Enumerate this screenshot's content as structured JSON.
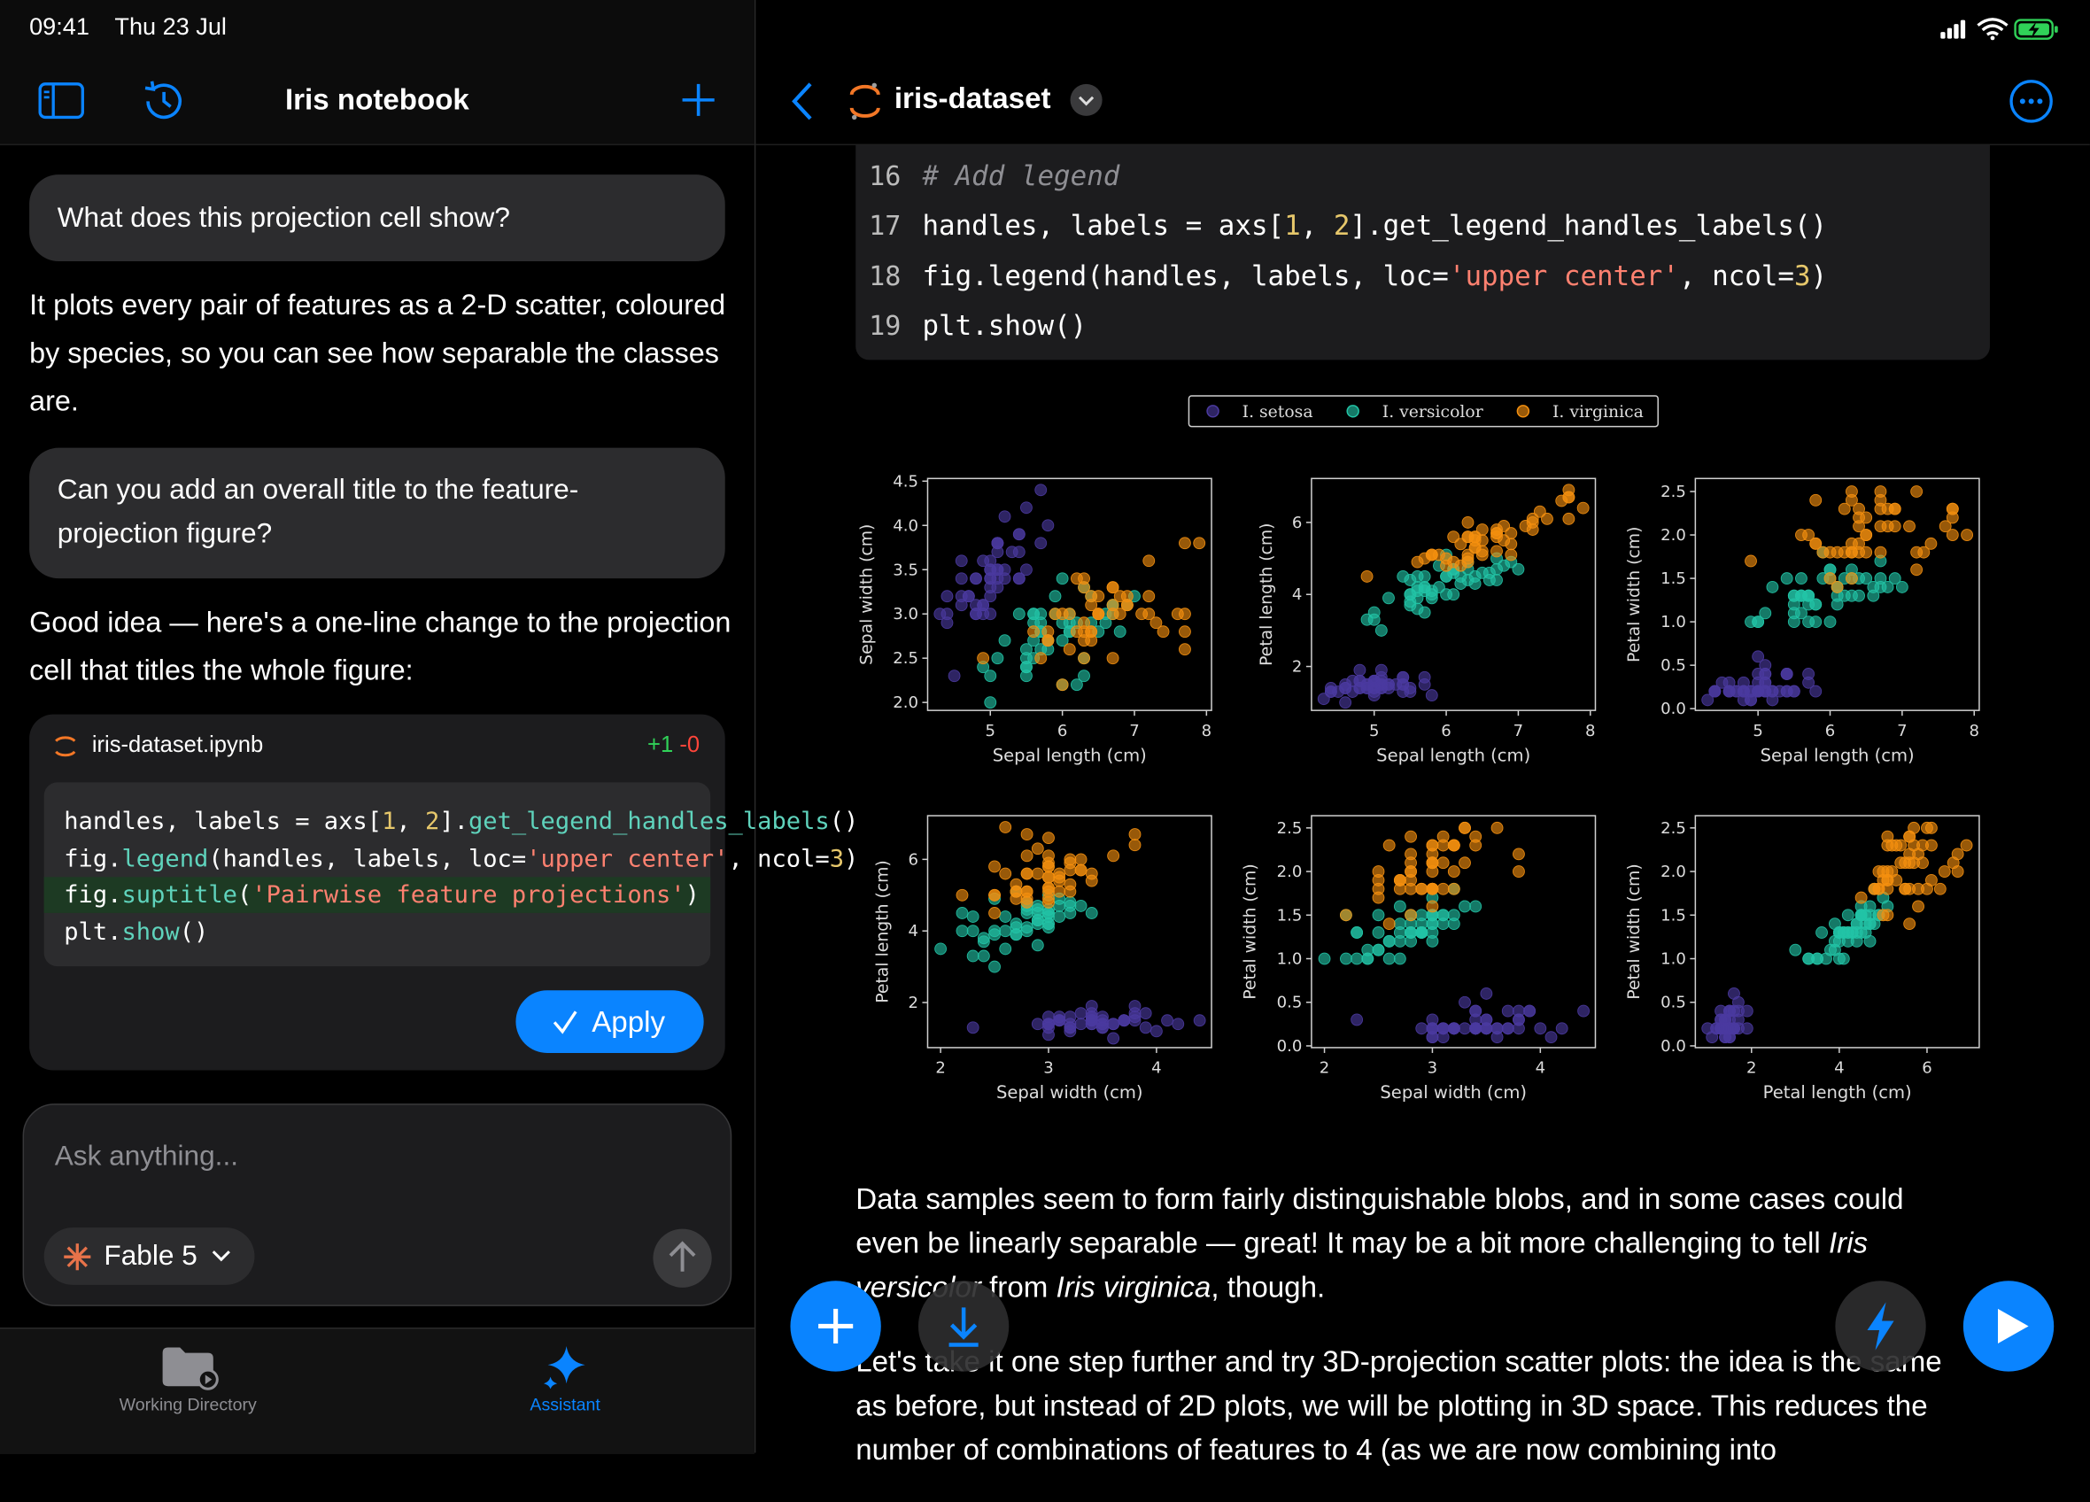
{
  "status_bar": {
    "time": "09:41",
    "date": "Thu 23 Jul"
  },
  "assistant": {
    "title": "Iris notebook",
    "messages": [
      {
        "user": "What does this projection cell show?"
      },
      {
        "reply": "It plots every pair of features as a 2-D scatter, coloured by species, so you can see how separable the classes are."
      },
      {
        "user": "Can you add an overall title to the feature-projection figure?"
      },
      {
        "reply": "Good idea — here's a one-line change to the projection cell that titles the whole figure:"
      }
    ],
    "suggestion": {
      "file": "iris-dataset.ipynb",
      "additions": "+1",
      "deletions": "-0",
      "lines": [
        {
          "code": "handles, labels = axs[1, 2].get_legend_handles_labels()"
        },
        {
          "code": "fig.legend(handles, labels, loc='upper center', ncol=3)"
        },
        {
          "code": "fig.suptitle('Pairwise feature projections')",
          "added": true
        },
        {
          "code": "plt.show()"
        }
      ],
      "action": "Apply"
    },
    "composer": {
      "placeholder": "Ask anything...",
      "model": "Fable 5"
    }
  },
  "tab_bar": {
    "tabs": [
      {
        "label": "Working Directory"
      },
      {
        "label": "Assistant",
        "selected": true
      }
    ]
  },
  "notebook": {
    "title": "iris-dataset",
    "code_cell": {
      "lines": [
        {
          "number": 16,
          "code": "# Add legend"
        },
        {
          "number": 17,
          "code": "handles, labels = axs[1, 2].get_legend_handles_labels()"
        },
        {
          "number": 18,
          "code": "fig.legend(handles, labels, loc='upper center', ncol=3)"
        },
        {
          "number": 19,
          "code": "plt.show()"
        }
      ]
    },
    "markdown": [
      [
        {
          "text": "Data samples seem to form fairly distinguishable blobs, and in some cases could even be linearly separable — great! It may be a bit more challenging to tell "
        },
        {
          "em": "Iris versicolor"
        },
        {
          "text": " from "
        },
        {
          "em": "Iris virginica"
        },
        {
          "text": ", though."
        }
      ],
      [
        {
          "text": "Let's take it one step further and try 3D-projection scatter plots: the idea is the same as before, but instead of 2D plots, we will be plotting in 3D space. This reduces the number of combinations of features to 4 (as we are now combining into"
        }
      ]
    ]
  },
  "chart_data": {
    "type": "scatter",
    "legend": "upper center",
    "features": [
      "Sepal length (cm)",
      "Sepal width (cm)",
      "Petal length (cm)",
      "Petal width (cm)"
    ],
    "series": [
      {
        "name": "I. setosa",
        "color": "#4b3aa0",
        "values": [
          [
            5.1,
            4.9,
            4.7,
            4.6,
            5.0,
            5.4,
            4.6,
            5.0,
            4.4,
            4.9,
            5.4,
            4.8,
            4.8,
            4.3,
            5.8,
            5.7,
            5.4,
            5.1,
            5.7,
            5.1,
            5.4,
            5.1,
            4.6,
            5.1,
            4.8,
            5.0,
            5.0,
            5.2,
            5.2,
            4.7,
            4.8,
            5.4,
            5.2,
            5.5,
            4.9,
            5.0,
            5.5,
            4.9,
            4.4,
            5.1,
            5.0,
            4.5,
            4.4,
            5.0,
            5.1,
            4.8,
            5.1,
            4.6,
            5.3,
            5.0
          ],
          [
            3.5,
            3.0,
            3.2,
            3.1,
            3.6,
            3.9,
            3.4,
            3.4,
            2.9,
            3.1,
            3.7,
            3.4,
            3.0,
            3.0,
            4.0,
            4.4,
            3.9,
            3.5,
            3.8,
            3.8,
            3.4,
            3.7,
            3.6,
            3.3,
            3.4,
            3.0,
            3.4,
            3.5,
            3.4,
            3.2,
            3.1,
            3.4,
            4.1,
            4.2,
            3.1,
            3.2,
            3.5,
            3.6,
            3.0,
            3.4,
            3.5,
            2.3,
            3.2,
            3.5,
            3.8,
            3.0,
            3.8,
            3.2,
            3.7,
            3.3
          ],
          [
            1.4,
            1.4,
            1.3,
            1.5,
            1.4,
            1.7,
            1.4,
            1.5,
            1.4,
            1.5,
            1.5,
            1.6,
            1.4,
            1.1,
            1.2,
            1.5,
            1.3,
            1.4,
            1.7,
            1.5,
            1.7,
            1.5,
            1.0,
            1.7,
            1.9,
            1.6,
            1.6,
            1.5,
            1.4,
            1.6,
            1.6,
            1.5,
            1.5,
            1.4,
            1.5,
            1.2,
            1.3,
            1.4,
            1.3,
            1.5,
            1.3,
            1.3,
            1.3,
            1.6,
            1.9,
            1.4,
            1.6,
            1.4,
            1.5,
            1.4
          ],
          [
            0.2,
            0.2,
            0.2,
            0.2,
            0.2,
            0.4,
            0.3,
            0.2,
            0.2,
            0.1,
            0.2,
            0.2,
            0.1,
            0.1,
            0.2,
            0.4,
            0.4,
            0.3,
            0.3,
            0.3,
            0.2,
            0.4,
            0.2,
            0.5,
            0.2,
            0.2,
            0.4,
            0.2,
            0.2,
            0.2,
            0.2,
            0.4,
            0.1,
            0.2,
            0.2,
            0.2,
            0.2,
            0.1,
            0.2,
            0.2,
            0.3,
            0.3,
            0.2,
            0.6,
            0.4,
            0.3,
            0.2,
            0.2,
            0.2,
            0.2
          ]
        ]
      },
      {
        "name": "I. versicolor",
        "color": "#22c4a6",
        "values": [
          [
            7.0,
            6.4,
            6.9,
            5.5,
            6.5,
            5.7,
            6.3,
            4.9,
            6.6,
            5.2,
            5.0,
            5.9,
            6.0,
            6.1,
            5.6,
            6.7,
            5.6,
            5.8,
            6.2,
            5.6,
            5.9,
            6.1,
            6.3,
            6.1,
            6.4,
            6.6,
            6.8,
            6.7,
            6.0,
            5.7,
            5.5,
            5.5,
            5.8,
            6.0,
            5.4,
            6.0,
            6.7,
            6.3,
            5.6,
            5.5,
            5.5,
            6.1,
            5.8,
            5.0,
            5.6,
            5.7,
            5.7,
            6.2,
            5.1,
            5.7
          ],
          [
            3.2,
            3.2,
            3.1,
            2.3,
            2.8,
            2.8,
            3.3,
            2.4,
            2.9,
            2.7,
            2.0,
            3.0,
            2.2,
            2.9,
            2.9,
            3.1,
            3.0,
            2.7,
            2.2,
            2.5,
            3.2,
            2.8,
            2.5,
            2.8,
            2.9,
            3.0,
            2.8,
            3.0,
            2.9,
            2.6,
            2.4,
            2.4,
            2.7,
            2.7,
            3.0,
            3.4,
            3.1,
            2.3,
            3.0,
            2.5,
            2.6,
            3.0,
            2.6,
            2.3,
            2.7,
            3.0,
            2.9,
            2.9,
            2.5,
            2.8
          ],
          [
            4.7,
            4.5,
            4.9,
            4.0,
            4.6,
            4.5,
            4.7,
            3.3,
            4.6,
            3.9,
            3.5,
            4.2,
            4.0,
            4.7,
            3.6,
            4.4,
            4.5,
            4.1,
            4.5,
            3.9,
            4.8,
            4.0,
            4.9,
            4.7,
            4.3,
            4.4,
            4.8,
            5.0,
            4.5,
            3.5,
            3.8,
            3.7,
            3.9,
            5.1,
            4.5,
            4.5,
            4.7,
            4.4,
            4.1,
            4.0,
            4.4,
            4.6,
            4.0,
            3.3,
            4.2,
            4.2,
            4.2,
            4.3,
            3.0,
            4.1
          ],
          [
            1.4,
            1.5,
            1.5,
            1.3,
            1.5,
            1.3,
            1.6,
            1.0,
            1.3,
            1.4,
            1.0,
            1.5,
            1.0,
            1.4,
            1.3,
            1.4,
            1.5,
            1.0,
            1.5,
            1.1,
            1.8,
            1.3,
            1.5,
            1.2,
            1.3,
            1.4,
            1.4,
            1.7,
            1.5,
            1.0,
            1.1,
            1.0,
            1.2,
            1.6,
            1.5,
            1.6,
            1.5,
            1.3,
            1.3,
            1.3,
            1.2,
            1.4,
            1.2,
            1.0,
            1.3,
            1.2,
            1.3,
            1.3,
            1.1,
            1.3
          ]
        ]
      },
      {
        "name": "I. virginica",
        "color": "#f5900f",
        "values": [
          [
            6.3,
            5.8,
            7.1,
            6.3,
            6.5,
            7.6,
            4.9,
            7.3,
            6.7,
            7.2,
            6.5,
            6.4,
            6.8,
            5.7,
            5.8,
            6.4,
            6.5,
            7.7,
            7.7,
            6.0,
            6.9,
            5.6,
            7.7,
            6.3,
            6.7,
            7.2,
            6.2,
            6.1,
            6.4,
            7.2,
            7.4,
            7.9,
            6.4,
            6.3,
            6.1,
            7.7,
            6.3,
            6.4,
            6.0,
            6.9,
            6.7,
            6.9,
            5.8,
            6.8,
            6.7,
            6.7,
            6.3,
            6.5,
            6.2,
            5.9
          ],
          [
            3.3,
            2.7,
            3.0,
            2.9,
            3.0,
            3.0,
            2.5,
            2.9,
            2.5,
            3.6,
            3.2,
            2.7,
            3.0,
            2.5,
            2.8,
            3.2,
            3.0,
            3.8,
            2.6,
            2.2,
            3.2,
            2.8,
            2.8,
            2.7,
            3.3,
            3.2,
            2.8,
            3.0,
            2.8,
            3.0,
            2.8,
            3.8,
            2.8,
            2.8,
            2.6,
            3.0,
            3.4,
            3.1,
            3.0,
            3.1,
            3.1,
            3.1,
            2.7,
            3.2,
            3.3,
            3.0,
            2.5,
            3.0,
            3.4,
            3.0
          ],
          [
            6.0,
            5.1,
            5.9,
            5.6,
            5.8,
            6.6,
            4.5,
            6.3,
            5.8,
            6.1,
            5.1,
            5.3,
            5.5,
            5.0,
            5.1,
            5.3,
            5.5,
            6.7,
            6.9,
            5.0,
            5.7,
            4.9,
            6.7,
            4.9,
            5.7,
            6.0,
            4.8,
            4.9,
            5.6,
            5.8,
            6.1,
            6.4,
            5.6,
            5.1,
            5.6,
            6.1,
            5.6,
            5.5,
            4.8,
            5.4,
            5.6,
            5.1,
            5.1,
            5.9,
            5.7,
            5.2,
            5.0,
            5.2,
            5.4,
            5.1
          ],
          [
            2.5,
            1.9,
            2.1,
            1.8,
            2.2,
            2.1,
            1.7,
            1.8,
            1.8,
            2.5,
            2.0,
            1.9,
            2.1,
            2.0,
            2.4,
            2.3,
            1.8,
            2.2,
            2.3,
            1.5,
            2.3,
            2.0,
            2.0,
            1.8,
            2.1,
            1.8,
            1.8,
            1.8,
            2.1,
            1.6,
            1.9,
            2.0,
            2.2,
            1.5,
            1.4,
            2.3,
            2.4,
            1.8,
            1.8,
            2.1,
            2.4,
            2.3,
            1.9,
            2.3,
            2.5,
            2.3,
            1.9,
            2.0,
            2.3,
            1.8
          ]
        ]
      }
    ],
    "panels": [
      {
        "xlabel": "Sepal length (cm)",
        "ylabel": "Sepal width (cm)",
        "xlim": [
          4.13,
          8.07
        ],
        "xticks": [
          5,
          6,
          7,
          8
        ],
        "ylim": [
          1.91,
          4.53
        ],
        "yticks": [
          {
            "value": 2,
            "label": "2.0"
          },
          2.5,
          {
            "value": 3,
            "label": "3.0"
          },
          3.5,
          {
            "value": 4,
            "label": "4.0"
          },
          4.5
        ]
      },
      {
        "xlabel": "Sepal length (cm)",
        "ylabel": "Petal length (cm)",
        "xlim": [
          4.13,
          8.07
        ],
        "xticks": [
          5,
          6,
          7,
          8
        ],
        "ylim": [
          0.78,
          7.22
        ],
        "yticks": [
          2,
          4,
          6
        ]
      },
      {
        "xlabel": "Sepal length (cm)",
        "ylabel": "Petal width (cm)",
        "xlim": [
          4.13,
          8.07
        ],
        "xticks": [
          5,
          6,
          7,
          8
        ],
        "ylim": [
          -0.02,
          2.65
        ],
        "yticks": [
          {
            "value": 0,
            "label": "0.0"
          },
          0.5,
          {
            "value": 1,
            "label": "1.0"
          },
          1.5,
          {
            "value": 2,
            "label": "2.0"
          },
          2.5
        ]
      },
      {
        "xlabel": "Sepal width (cm)",
        "ylabel": "Petal length (cm)",
        "xlim": [
          1.88,
          4.51
        ],
        "xticks": [
          2,
          3,
          4
        ],
        "ylim": [
          0.74,
          7.22
        ],
        "yticks": [
          2,
          4,
          6
        ]
      },
      {
        "xlabel": "Sepal width (cm)",
        "ylabel": "Petal width (cm)",
        "xlim": [
          1.88,
          4.51
        ],
        "xticks": [
          2,
          3,
          4
        ],
        "ylim": [
          -0.02,
          2.64
        ],
        "yticks": [
          {
            "value": 0,
            "label": "0.0"
          },
          0.5,
          {
            "value": 1,
            "label": "1.0"
          },
          1.5,
          {
            "value": 2,
            "label": "2.0"
          },
          2.5
        ]
      },
      {
        "xlabel": "Petal length (cm)",
        "ylabel": "Petal width (cm)",
        "xlim": [
          0.72,
          7.19
        ],
        "xticks": [
          2,
          4,
          6
        ],
        "ylim": [
          -0.02,
          2.64
        ],
        "yticks": [
          {
            "value": 0,
            "label": "0.0"
          },
          0.5,
          {
            "value": 1,
            "label": "1.0"
          },
          1.5,
          {
            "value": 2,
            "label": "2.0"
          },
          2.5
        ]
      }
    ]
  }
}
